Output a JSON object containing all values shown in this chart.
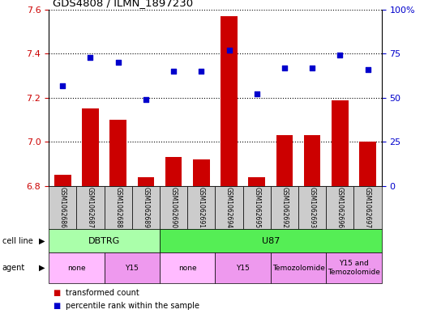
{
  "title": "GDS4808 / ILMN_1897230",
  "samples": [
    "GSM1062686",
    "GSM1062687",
    "GSM1062688",
    "GSM1062689",
    "GSM1062690",
    "GSM1062691",
    "GSM1062694",
    "GSM1062695",
    "GSM1062692",
    "GSM1062693",
    "GSM1062696",
    "GSM1062697"
  ],
  "bar_values": [
    6.85,
    7.15,
    7.1,
    6.84,
    6.93,
    6.92,
    7.57,
    6.84,
    7.03,
    7.03,
    7.19,
    7.0
  ],
  "scatter_values": [
    57,
    73,
    70,
    49,
    65,
    65,
    77,
    52,
    67,
    67,
    74,
    66
  ],
  "ylim_left": [
    6.8,
    7.6
  ],
  "ylim_right": [
    0,
    100
  ],
  "yticks_left": [
    6.8,
    7.0,
    7.2,
    7.4,
    7.6
  ],
  "yticks_right": [
    0,
    25,
    50,
    75,
    100
  ],
  "bar_color": "#cc0000",
  "scatter_color": "#0000cc",
  "cell_line_groups": [
    {
      "label": "DBTRG",
      "start": 0,
      "end": 3,
      "color": "#aaffaa"
    },
    {
      "label": "U87",
      "start": 4,
      "end": 11,
      "color": "#55ee55"
    }
  ],
  "agent_groups": [
    {
      "label": "none",
      "start": 0,
      "end": 1,
      "color": "#ffbbff"
    },
    {
      "label": "Y15",
      "start": 2,
      "end": 3,
      "color": "#ee99ee"
    },
    {
      "label": "none",
      "start": 4,
      "end": 5,
      "color": "#ffbbff"
    },
    {
      "label": "Y15",
      "start": 6,
      "end": 7,
      "color": "#ee99ee"
    },
    {
      "label": "Temozolomide",
      "start": 8,
      "end": 9,
      "color": "#ee99ee"
    },
    {
      "label": "Y15 and\nTemozolomide",
      "start": 10,
      "end": 11,
      "color": "#ee99ee"
    }
  ],
  "legend_items": [
    {
      "label": "transformed count",
      "color": "#cc0000"
    },
    {
      "label": "percentile rank within the sample",
      "color": "#0000cc"
    }
  ],
  "background_color": "#ffffff",
  "tick_label_color_left": "#cc0000",
  "tick_label_color_right": "#0000cc",
  "sample_row_color": "#cccccc",
  "left_label_color": "#000000"
}
